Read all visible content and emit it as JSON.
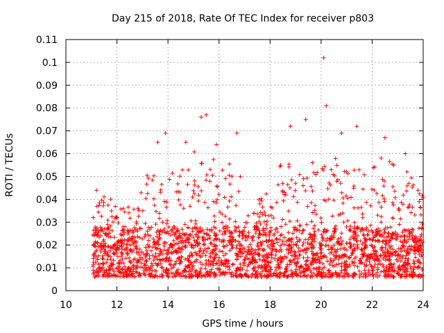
{
  "chart_data": {
    "type": "scatter",
    "title": "Day 215 of 2018, Rate Of TEC Index for receiver p803",
    "xlabel": "GPS time / hours",
    "ylabel": "ROTI / TECUs",
    "xlim": [
      10,
      24
    ],
    "ylim": [
      0,
      0.11
    ],
    "xticks": [
      10,
      12,
      14,
      16,
      18,
      20,
      22,
      24
    ],
    "xtick_labels": [
      "10",
      "12",
      "14",
      "16",
      "18",
      "20",
      "22",
      "24"
    ],
    "yticks": [
      0,
      0.01,
      0.02,
      0.03,
      0.04,
      0.05,
      0.06,
      0.07,
      0.08,
      0.09,
      0.1,
      0.11
    ],
    "ytick_labels": [
      "0",
      "0.01",
      "0.02",
      "0.03",
      "0.04",
      "0.05",
      "0.06",
      "0.07",
      "0.08",
      "0.09",
      "0.1",
      "0.11"
    ],
    "grid": true,
    "marker": "+",
    "color": "#ff0000",
    "series": [
      {
        "name": "ROTI",
        "x_range": [
          11.05,
          24.0
        ],
        "typical_range": [
          0.005,
          0.035
        ],
        "note": "dense cloud of several thousand points; notable peaks listed in highlights",
        "highlights": [
          {
            "x": 11.2,
            "y": 0.044
          },
          {
            "x": 13.6,
            "y": 0.065
          },
          {
            "x": 13.9,
            "y": 0.069
          },
          {
            "x": 14.7,
            "y": 0.065
          },
          {
            "x": 15.3,
            "y": 0.076
          },
          {
            "x": 15.5,
            "y": 0.077
          },
          {
            "x": 15.9,
            "y": 0.064
          },
          {
            "x": 16.7,
            "y": 0.069
          },
          {
            "x": 18.8,
            "y": 0.072
          },
          {
            "x": 19.4,
            "y": 0.075
          },
          {
            "x": 20.1,
            "y": 0.102
          },
          {
            "x": 20.2,
            "y": 0.081
          },
          {
            "x": 20.8,
            "y": 0.069
          },
          {
            "x": 21.4,
            "y": 0.072
          },
          {
            "x": 22.5,
            "y": 0.067
          },
          {
            "x": 23.3,
            "y": 0.06
          },
          {
            "x": 23.8,
            "y": 0.044
          }
        ]
      }
    ]
  }
}
